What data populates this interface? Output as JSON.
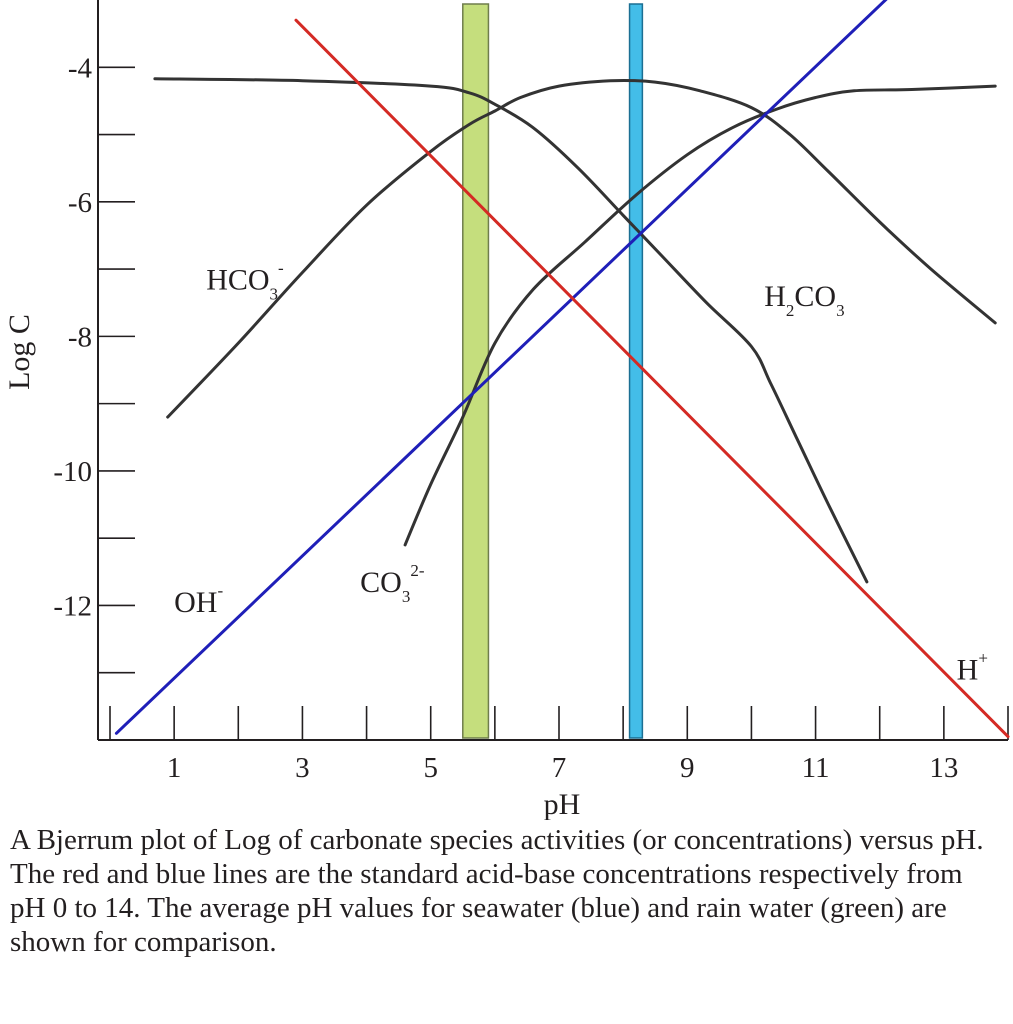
{
  "chart_data": {
    "type": "line",
    "xlabel": "pH",
    "ylabel": "Log C",
    "xlim": [
      0,
      14
    ],
    "ylim": [
      -14,
      -3
    ],
    "x_ticks": [
      0,
      1,
      2,
      3,
      4,
      5,
      6,
      7,
      8,
      9,
      10,
      11,
      12,
      13,
      14
    ],
    "x_tick_labels": [
      "1",
      "3",
      "5",
      "7",
      "9",
      "11",
      "13"
    ],
    "x_tick_label_values": [
      1,
      3,
      5,
      7,
      9,
      11,
      13
    ],
    "y_ticks": [
      -4,
      -5,
      -6,
      -7,
      -8,
      -9,
      -10,
      -11,
      -12,
      -13
    ],
    "y_tick_labels": [
      "-4",
      "-6",
      "-8",
      "-10",
      "-12"
    ],
    "y_tick_label_values": [
      -4,
      -6,
      -8,
      -10,
      -12
    ],
    "grid": false,
    "legend": "none",
    "series": [
      {
        "name": "H2CO3",
        "color": "#333333",
        "x": [
          0.7,
          3.0,
          5.0,
          5.6,
          6.0,
          6.6,
          7.3,
          8.0,
          8.6,
          9.3,
          10.0,
          10.3,
          10.7,
          11.2,
          11.8
        ],
        "y": [
          -4.17,
          -4.2,
          -4.28,
          -4.38,
          -4.55,
          -4.9,
          -5.5,
          -6.2,
          -6.8,
          -7.5,
          -8.15,
          -8.7,
          -9.5,
          -10.5,
          -11.65
        ]
      },
      {
        "name": "HCO3-",
        "color": "#333333",
        "x": [
          0.9,
          2.0,
          3.0,
          4.0,
          5.0,
          5.6,
          6.0,
          6.4,
          7.0,
          7.8,
          8.5,
          9.2,
          10.0,
          10.6,
          11.2,
          12.0,
          12.8,
          13.8
        ],
        "y": [
          -9.2,
          -8.1,
          -7.05,
          -6.05,
          -5.25,
          -4.85,
          -4.65,
          -4.45,
          -4.28,
          -4.2,
          -4.22,
          -4.35,
          -4.6,
          -5.0,
          -5.55,
          -6.3,
          -7.0,
          -7.8
        ]
      },
      {
        "name": "CO3 2-",
        "color": "#333333",
        "x": [
          4.6,
          5.0,
          5.5,
          6.0,
          6.6,
          7.4,
          8.2,
          9.0,
          9.7,
          10.4,
          11.0,
          11.6,
          12.5,
          13.8
        ],
        "y": [
          -11.1,
          -10.2,
          -9.2,
          -8.1,
          -7.3,
          -6.6,
          -5.9,
          -5.3,
          -4.9,
          -4.62,
          -4.45,
          -4.35,
          -4.33,
          -4.28
        ]
      },
      {
        "name": "OH-",
        "color": "#1f1fb8",
        "x": [
          0.1,
          12.2
        ],
        "y": [
          -13.9,
          -2.9
        ]
      },
      {
        "name": "H+",
        "color": "#d42a24",
        "x": [
          2.9,
          14.0
        ],
        "y": [
          -3.3,
          -13.95
        ]
      }
    ],
    "bands": [
      {
        "label": "rain water (green)",
        "x_from": 5.5,
        "x_to": 5.9,
        "fill": "#c5de7d",
        "stroke": "#6f7d4c"
      },
      {
        "label": "seawater (blue)",
        "x_from": 8.1,
        "x_to": 8.3,
        "fill": "#43bde8",
        "stroke": "#1b6f93"
      }
    ],
    "annotations": [
      {
        "key": "hco3",
        "base": "HCO",
        "sub": "3",
        "sup": "-",
        "x": 1.5,
        "y": -7.3
      },
      {
        "key": "h2co3",
        "base": "H",
        "sub": "2",
        "mid": "CO",
        "sub2": "3",
        "x": 10.2,
        "y": -7.55
      },
      {
        "key": "co3",
        "base": "CO",
        "sub": "3",
        "sup": "2-",
        "x": 3.9,
        "y": -11.8
      },
      {
        "key": "oh",
        "base": "OH",
        "sup": "-",
        "x": 1.0,
        "y": -12.1
      },
      {
        "key": "h",
        "base": "H",
        "sup": "+",
        "x": 13.2,
        "y": -13.1
      }
    ]
  },
  "caption": "A Bjerrum plot of Log of carbonate species activities (or concentrations) versus pH. The red and blue lines are the standard acid-base concentrations respectively from pH 0 to 14. The average pH values for seawater (blue) and rain water (green) are shown for comparison."
}
